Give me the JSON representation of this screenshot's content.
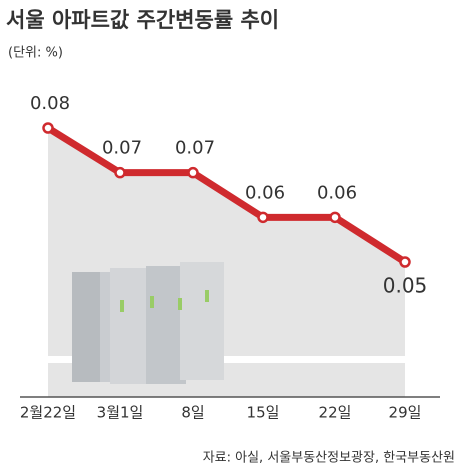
{
  "chart_data": {
    "type": "line",
    "title": "서울 아파트값 주간변동률 추이",
    "subtitle": "(단위: %)",
    "source": "자료: 아실, 서울부동산정보광장, 한국부동산원",
    "categories": [
      "2월22일",
      "3월1일",
      "8일",
      "15일",
      "22일",
      "29일"
    ],
    "values": [
      0.08,
      0.07,
      0.07,
      0.06,
      0.06,
      0.05
    ],
    "color": "#cf2a2e"
  }
}
